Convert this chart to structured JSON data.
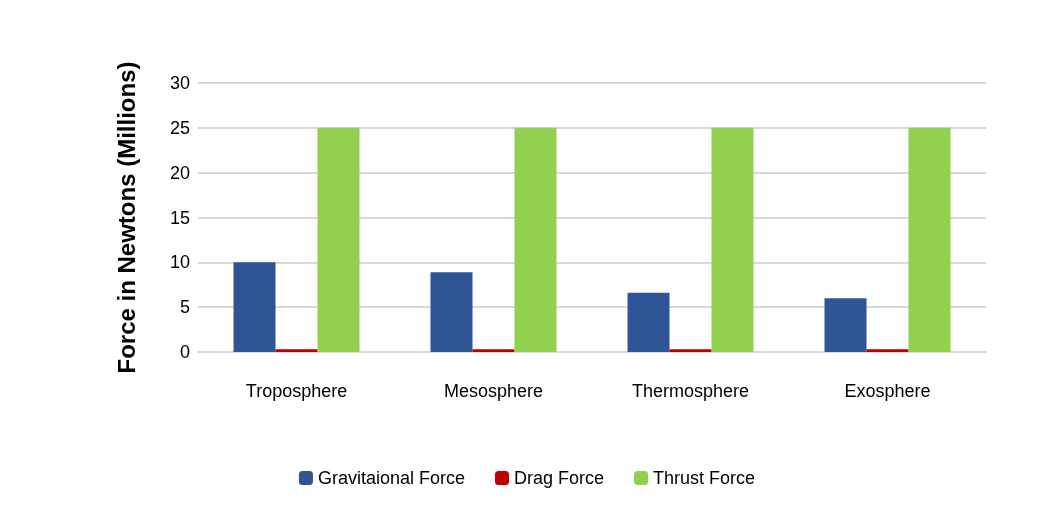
{
  "chart_data": {
    "type": "bar",
    "ylabel": "Force in Newtons (Millions)",
    "categories": [
      "Troposphere",
      "Mesosphere",
      "Thermosphere",
      "Exosphere"
    ],
    "series": [
      {
        "name": "Gravitaional Force",
        "color": "#2f5597",
        "values": [
          10,
          8.9,
          6.6,
          6.0
        ]
      },
      {
        "name": "Drag Force",
        "color": "#c00000",
        "values": [
          0.3,
          0.3,
          0.3,
          0.3
        ]
      },
      {
        "name": "Thrust Force",
        "color": "#92d050",
        "values": [
          25,
          25,
          25,
          25
        ]
      }
    ],
    "ylim": [
      0,
      30
    ],
    "yticks": [
      0,
      5,
      10,
      15,
      20,
      25,
      30
    ],
    "grid": "y",
    "legend": "bottom"
  }
}
